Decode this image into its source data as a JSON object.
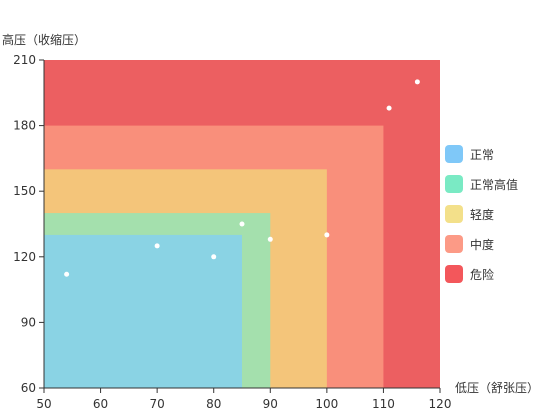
{
  "chart_data": {
    "type": "scatter",
    "title": "",
    "ylabel": "高压（收缩压）",
    "xlabel": "低压（舒张压）",
    "xlim": [
      50,
      120
    ],
    "ylim": [
      60,
      210
    ],
    "x_ticks": [
      50,
      60,
      70,
      80,
      90,
      100,
      110,
      120
    ],
    "y_ticks": [
      60,
      90,
      120,
      150,
      180,
      210
    ],
    "regions": [
      {
        "name": "危险",
        "x_max": 120,
        "y_max": 210,
        "color": "#ec5f61"
      },
      {
        "name": "中度",
        "x_max": 110,
        "y_max": 180,
        "color": "#f98f7b"
      },
      {
        "name": "轻度",
        "x_max": 100,
        "y_max": 160,
        "color": "#f4c57a"
      },
      {
        "name": "正常高值",
        "x_max": 90,
        "y_max": 140,
        "color": "#a4e0ad"
      },
      {
        "name": "正常",
        "x_max": 85,
        "y_max": 130,
        "color": "#8ad3e4"
      }
    ],
    "points": [
      {
        "x": 54,
        "y": 112
      },
      {
        "x": 70,
        "y": 125
      },
      {
        "x": 80,
        "y": 120
      },
      {
        "x": 85,
        "y": 135
      },
      {
        "x": 90,
        "y": 128
      },
      {
        "x": 100,
        "y": 130
      },
      {
        "x": 111,
        "y": 188
      },
      {
        "x": 116,
        "y": 200
      }
    ],
    "point_color": "#ffffff",
    "legend": [
      {
        "label": "正常",
        "color": "#7fc8f8"
      },
      {
        "label": "正常高值",
        "color": "#7aeac4"
      },
      {
        "label": "轻度",
        "color": "#f3e08a"
      },
      {
        "label": "中度",
        "color": "#fc9a86"
      },
      {
        "label": "危险",
        "color": "#f3575b"
      }
    ],
    "legend_position": "right"
  }
}
